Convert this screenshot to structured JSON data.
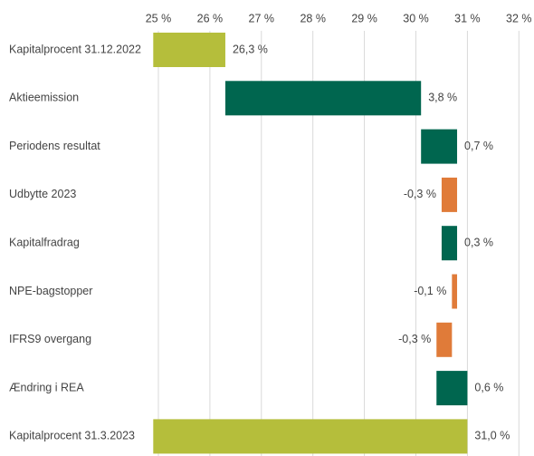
{
  "chart_data": {
    "type": "waterfall",
    "categories": [
      "Kapitalprocent 31.12.2022",
      "Aktieemission",
      "Periodens resultat",
      "Udbytte 2023",
      "Kapitalfradrag",
      "NPE-bagstopper",
      "IFRS9 overgang",
      "Ændring i REA",
      "Kapitalprocent 31.3.2023"
    ],
    "values": [
      26.3,
      3.8,
      0.7,
      -0.3,
      0.3,
      -0.1,
      -0.3,
      0.6,
      31.0
    ],
    "value_labels": [
      "26,3 %",
      "3,8 %",
      "0,7 %",
      "-0,3 %",
      "0,3 %",
      "-0,1 %",
      "-0,3 %",
      "0,6 %",
      "31,0 %"
    ],
    "totals": [
      0,
      8
    ],
    "colors": {
      "total": "#b5be3b",
      "increase": "#00664f",
      "decrease": "#e07b39"
    },
    "xlim": [
      24.9,
      32.1
    ],
    "xticks": [
      {
        "value": 25,
        "label": "25 %"
      },
      {
        "value": 26,
        "label": "26 %"
      },
      {
        "value": 27,
        "label": "27 %"
      },
      {
        "value": 28,
        "label": "28 %"
      },
      {
        "value": 29,
        "label": "29 %"
      },
      {
        "value": 30,
        "label": "30 %"
      },
      {
        "value": 31,
        "label": "31 %"
      },
      {
        "value": 32,
        "label": "32 %"
      }
    ],
    "grid": true
  }
}
